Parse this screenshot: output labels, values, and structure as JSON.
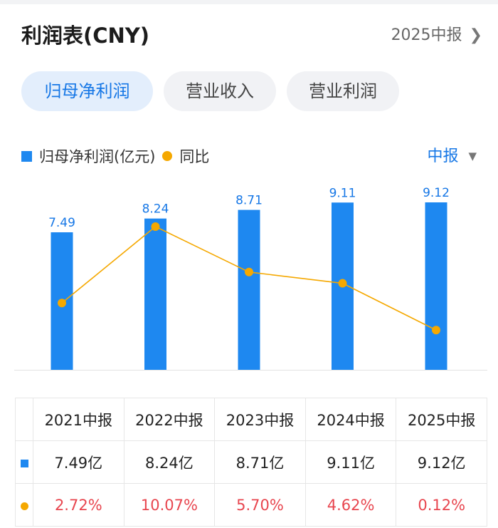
{
  "header": {
    "title": "利润表(CNY)",
    "period": "2025中报",
    "period_chevron": "chevron-right-icon"
  },
  "tabs": [
    {
      "label": "归母净利润",
      "active": true
    },
    {
      "label": "营业收入",
      "active": false
    },
    {
      "label": "营业利润",
      "active": false
    }
  ],
  "legend": {
    "bar_label": "归母净利润(亿元)",
    "line_label": "同比"
  },
  "range": {
    "label": "中报",
    "icon": "caret-down-icon"
  },
  "colors": {
    "accent": "#1677e6",
    "bar": "#1e88f0",
    "line": "#f5a800",
    "negative_text": "#e8464f"
  },
  "chart_data": {
    "type": "bar",
    "categories": [
      "2021中报",
      "2022中报",
      "2023中报",
      "2024中报",
      "2025中报"
    ],
    "series": [
      {
        "name": "归母净利润(亿元)",
        "type": "bar",
        "values": [
          7.49,
          8.24,
          8.71,
          9.11,
          9.12
        ],
        "labels": [
          "7.49",
          "8.24",
          "8.71",
          "9.11",
          "9.12"
        ]
      },
      {
        "name": "同比",
        "type": "line",
        "values": [
          2.72,
          10.07,
          5.7,
          4.62,
          0.12
        ]
      }
    ],
    "ylim": [
      0,
      9.12
    ],
    "grid": false,
    "legend_position": "top-left"
  },
  "table": {
    "headers": [
      "2021中报",
      "2022中报",
      "2023中报",
      "2024中报",
      "2025中报"
    ],
    "values": [
      "7.49亿",
      "8.24亿",
      "8.71亿",
      "9.11亿",
      "9.12亿"
    ],
    "yoy": [
      "2.72%",
      "10.07%",
      "5.70%",
      "4.62%",
      "0.12%"
    ]
  }
}
